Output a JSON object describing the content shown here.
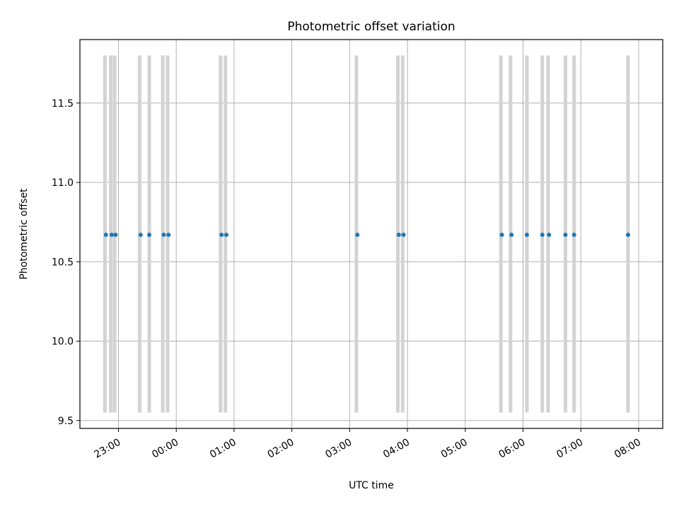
{
  "chart_data": {
    "type": "scatter",
    "title": "Photometric offset variation",
    "xlabel": "UTC time",
    "ylabel": "Photometric offset",
    "x_axis": {
      "kind": "time",
      "range": [
        "22:20",
        "08:25"
      ],
      "ticks": [
        "23:00",
        "00:00",
        "01:00",
        "02:00",
        "03:00",
        "04:00",
        "05:00",
        "06:00",
        "07:00",
        "08:00"
      ]
    },
    "y_axis": {
      "range": [
        9.45,
        11.9
      ],
      "ticks": [
        "9.5",
        "10.0",
        "10.5",
        "11.0",
        "11.5"
      ]
    },
    "grid": true,
    "series": [
      {
        "x": [
          "22:47",
          "22:53",
          "22:57",
          "23:23",
          "23:32",
          "23:47",
          "23:52",
          "00:47",
          "00:52",
          "03:08",
          "03:51",
          "03:56",
          "05:38",
          "05:48",
          "06:04",
          "06:20",
          "06:27",
          "06:44",
          "06:53",
          "07:49"
        ],
        "y": [
          10.67,
          10.67,
          10.67,
          10.67,
          10.67,
          10.67,
          10.67,
          10.67,
          10.67,
          10.67,
          10.67,
          10.67,
          10.67,
          10.67,
          10.67,
          10.67,
          10.67,
          10.67,
          10.67,
          10.67
        ],
        "color": "#1f77b4"
      }
    ],
    "vertical_bands": {
      "x": [
        "22:46",
        "22:52",
        "22:56",
        "23:22",
        "23:32",
        "23:46",
        "23:51",
        "00:46",
        "00:51",
        "03:07",
        "03:50",
        "03:55",
        "05:37",
        "05:47",
        "06:04",
        "06:20",
        "06:26",
        "06:44",
        "06:53",
        "07:49"
      ],
      "y_range": [
        9.55,
        11.8
      ],
      "color": "#d3d3d3"
    }
  }
}
